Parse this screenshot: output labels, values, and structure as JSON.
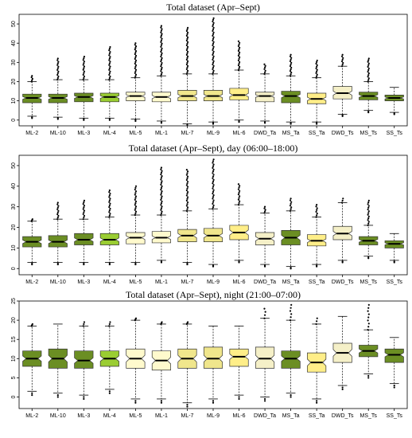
{
  "chart_data": [
    {
      "type": "boxplot",
      "title": "Total dataset (Apr–Sept)",
      "xlabel": "",
      "ylabel": "",
      "ylim": [
        -3,
        55
      ],
      "yticks": [
        0,
        10,
        20,
        30,
        40,
        50
      ],
      "categories": [
        "ML-2",
        "ML-10",
        "ML-3",
        "ML-4",
        "ML-5",
        "ML-1",
        "ML-7",
        "ML-9",
        "ML-6",
        "DWD_Ta",
        "MS_Ta",
        "SS_Ta",
        "DWD_Ts",
        "MS_Ts",
        "SS_Ts"
      ],
      "fill_colors": [
        "#6b8e23",
        "#6b8e23",
        "#6b8e23",
        "#9acd32",
        "#fffacd",
        "#fffacd",
        "#f0e68c",
        "#f0e68c",
        "#ffee88",
        "#f5f0c8",
        "#6b8e23",
        "#ffee88",
        "#f5f0c8",
        "#6b8e23",
        "#6b8e23"
      ],
      "series": [
        {
          "category": "ML-2",
          "q1": 9,
          "median": 11.5,
          "q3": 13.5,
          "whisker_low": 2,
          "whisker_high": 20,
          "outlier_max": 23
        },
        {
          "category": "ML-10",
          "q1": 9,
          "median": 11.5,
          "q3": 13.5,
          "whisker_low": 1.5,
          "whisker_high": 21,
          "outlier_max": 32
        },
        {
          "category": "ML-3",
          "q1": 9.5,
          "median": 12,
          "q3": 14,
          "whisker_low": 1,
          "whisker_high": 21,
          "outlier_max": 33
        },
        {
          "category": "ML-4",
          "q1": 9.5,
          "median": 12,
          "q3": 14,
          "whisker_low": 1,
          "whisker_high": 21,
          "outlier_max": 38
        },
        {
          "category": "ML-5",
          "q1": 10,
          "median": 12.5,
          "q3": 14.5,
          "whisker_low": 0.5,
          "whisker_high": 22,
          "outlier_max": 40
        },
        {
          "category": "ML-1",
          "q1": 9.5,
          "median": 12,
          "q3": 14.5,
          "whisker_low": -0.5,
          "whisker_high": 23,
          "outlier_max": 49
        },
        {
          "category": "ML-7",
          "q1": 10,
          "median": 12.5,
          "q3": 15.5,
          "whisker_low": -2,
          "whisker_high": 24,
          "outlier_max": 48
        },
        {
          "category": "ML-9",
          "q1": 10,
          "median": 12.5,
          "q3": 15.5,
          "whisker_low": -1,
          "whisker_high": 24,
          "outlier_max": 53
        },
        {
          "category": "ML-6",
          "q1": 10.5,
          "median": 13,
          "q3": 16.5,
          "whisker_low": 0,
          "whisker_high": 26,
          "outlier_max": 41
        },
        {
          "category": "DWD_Ta",
          "q1": 9.5,
          "median": 12.5,
          "q3": 14.5,
          "whisker_low": -0.5,
          "whisker_high": 24,
          "outlier_max": 29
        },
        {
          "category": "MS_Ta",
          "q1": 9,
          "median": 12.5,
          "q3": 15,
          "whisker_low": -1,
          "whisker_high": 23,
          "outlier_max": 34
        },
        {
          "category": "SS_Ta",
          "q1": 8.5,
          "median": 11,
          "q3": 14,
          "whisker_low": -1,
          "whisker_high": 22,
          "outlier_max": 31
        },
        {
          "category": "DWD_Ts",
          "q1": 11,
          "median": 14,
          "q3": 17.5,
          "whisker_low": 3,
          "whisker_high": 28,
          "outlier_max": 34
        },
        {
          "category": "MS_Ts",
          "q1": 10.5,
          "median": 12.5,
          "q3": 14.5,
          "whisker_low": 5,
          "whisker_high": 20,
          "outlier_max": 32
        },
        {
          "category": "SS_Ts",
          "q1": 10,
          "median": 11.5,
          "q3": 13,
          "whisker_low": 4,
          "whisker_high": 17,
          "outlier_max": 17
        }
      ]
    },
    {
      "type": "boxplot",
      "title": "Total dataset (Apr–Sept), day (06:00–18:00)",
      "xlabel": "",
      "ylabel": "",
      "ylim": [
        -3,
        55
      ],
      "yticks": [
        0,
        10,
        20,
        30,
        40,
        50
      ],
      "categories": [
        "ML-2",
        "ML-10",
        "ML-3",
        "ML-4",
        "ML-5",
        "ML-1",
        "ML-7",
        "ML-9",
        "ML-6",
        "DWD_Ta",
        "MS_Ta",
        "SS_Ta",
        "DWD_Ts",
        "MS_Ts",
        "SS_Ts"
      ],
      "fill_colors": [
        "#6b8e23",
        "#6b8e23",
        "#6b8e23",
        "#9acd32",
        "#fffacd",
        "#fffacd",
        "#f0e68c",
        "#f0e68c",
        "#ffee88",
        "#f5f0c8",
        "#6b8e23",
        "#ffee88",
        "#f5f0c8",
        "#6b8e23",
        "#6b8e23"
      ],
      "series": [
        {
          "category": "ML-2",
          "q1": 10.5,
          "median": 13,
          "q3": 15.5,
          "whisker_low": 3,
          "whisker_high": 23,
          "outlier_max": 24
        },
        {
          "category": "ML-10",
          "q1": 10.5,
          "median": 13,
          "q3": 16,
          "whisker_low": 3,
          "whisker_high": 24,
          "outlier_max": 32
        },
        {
          "category": "ML-3",
          "q1": 11.5,
          "median": 14,
          "q3": 17,
          "whisker_low": 3,
          "whisker_high": 24,
          "outlier_max": 33
        },
        {
          "category": "ML-4",
          "q1": 11.5,
          "median": 14,
          "q3": 17,
          "whisker_low": 3,
          "whisker_high": 25,
          "outlier_max": 38
        },
        {
          "category": "ML-5",
          "q1": 12,
          "median": 15,
          "q3": 17.5,
          "whisker_low": 3,
          "whisker_high": 26,
          "outlier_max": 40
        },
        {
          "category": "ML-1",
          "q1": 12.5,
          "median": 15,
          "q3": 18,
          "whisker_low": 4,
          "whisker_high": 26,
          "outlier_max": 49
        },
        {
          "category": "ML-7",
          "q1": 13,
          "median": 16,
          "q3": 19,
          "whisker_low": 3,
          "whisker_high": 28,
          "outlier_max": 48
        },
        {
          "category": "ML-9",
          "q1": 13,
          "median": 16,
          "q3": 19.5,
          "whisker_low": 2,
          "whisker_high": 29,
          "outlier_max": 53
        },
        {
          "category": "ML-6",
          "q1": 14,
          "median": 17.5,
          "q3": 21,
          "whisker_low": 4,
          "whisker_high": 31,
          "outlier_max": 41
        },
        {
          "category": "DWD_Ta",
          "q1": 11.5,
          "median": 14.5,
          "q3": 17.5,
          "whisker_low": 2,
          "whisker_high": 27,
          "outlier_max": 30
        },
        {
          "category": "MS_Ta",
          "q1": 11.5,
          "median": 15,
          "q3": 18.5,
          "whisker_low": 1,
          "whisker_high": 28,
          "outlier_max": 34
        },
        {
          "category": "SS_Ta",
          "q1": 11,
          "median": 13.5,
          "q3": 16.5,
          "whisker_low": 2,
          "whisker_high": 25,
          "outlier_max": 31
        },
        {
          "category": "DWD_Ts",
          "q1": 14,
          "median": 17,
          "q3": 20.5,
          "whisker_low": 4,
          "whisker_high": 32,
          "outlier_max": 34
        },
        {
          "category": "MS_Ts",
          "q1": 11.5,
          "median": 13.5,
          "q3": 15.5,
          "whisker_low": 6,
          "whisker_high": 21,
          "outlier_max": 33
        },
        {
          "category": "SS_Ts",
          "q1": 10,
          "median": 12,
          "q3": 13.5,
          "whisker_low": 4,
          "whisker_high": 17,
          "outlier_max": 17
        }
      ]
    },
    {
      "type": "boxplot",
      "title": "Total dataset (Apr–Sept), night (21:00–07:00)",
      "xlabel": "",
      "ylabel": "",
      "ylim": [
        -3,
        25
      ],
      "yticks": [
        0,
        5,
        10,
        15,
        20,
        25
      ],
      "categories": [
        "ML-2",
        "ML-10",
        "ML-3",
        "ML-4",
        "ML-5",
        "ML-1",
        "ML-7",
        "ML-9",
        "ML-6",
        "DWD_Ta",
        "MS_Ta",
        "SS_Ta",
        "DWD_Ts",
        "MS_Ts",
        "SS_Ts"
      ],
      "fill_colors": [
        "#6b8e23",
        "#6b8e23",
        "#6b8e23",
        "#9acd32",
        "#fffacd",
        "#fffacd",
        "#f0e68c",
        "#f0e68c",
        "#ffee88",
        "#f5f0c8",
        "#6b8e23",
        "#ffee88",
        "#f5f0c8",
        "#6b8e23",
        "#6b8e23"
      ],
      "series": [
        {
          "category": "ML-2",
          "q1": 8,
          "median": 10,
          "q3": 12,
          "whisker_low": 1.5,
          "whisker_high": 18.5,
          "outlier_max": 19
        },
        {
          "category": "ML-10",
          "q1": 7.5,
          "median": 10,
          "q3": 12.5,
          "whisker_low": 1,
          "whisker_high": 19,
          "outlier_max": 19
        },
        {
          "category": "ML-3",
          "q1": 7.5,
          "median": 9.5,
          "q3": 12,
          "whisker_low": 0.5,
          "whisker_high": 18.5,
          "outlier_max": 19.5
        },
        {
          "category": "ML-4",
          "q1": 8,
          "median": 10,
          "q3": 12,
          "whisker_low": 2,
          "whisker_high": 18.5,
          "outlier_max": 19.5
        },
        {
          "category": "ML-5",
          "q1": 7.5,
          "median": 10,
          "q3": 12.5,
          "whisker_low": -0.5,
          "whisker_high": 20,
          "outlier_max": 20.5
        },
        {
          "category": "ML-1",
          "q1": 7,
          "median": 9.5,
          "q3": 12,
          "whisker_low": -0.5,
          "whisker_high": 19,
          "outlier_max": 19.5
        },
        {
          "category": "ML-7",
          "q1": 7.5,
          "median": 10,
          "q3": 12.5,
          "whisker_low": -1.5,
          "whisker_high": 19,
          "outlier_max": 19.5
        },
        {
          "category": "ML-9",
          "q1": 7.5,
          "median": 10,
          "q3": 13,
          "whisker_low": -0.5,
          "whisker_high": 18.5,
          "outlier_max": 18.5
        },
        {
          "category": "ML-6",
          "q1": 8,
          "median": 10.5,
          "q3": 12.5,
          "whisker_low": 0.5,
          "whisker_high": 18.5,
          "outlier_max": 18.5
        },
        {
          "category": "DWD_Ta",
          "q1": 7.5,
          "median": 10,
          "q3": 13,
          "whisker_low": 0,
          "whisker_high": 20.5,
          "outlier_max": 23
        },
        {
          "category": "MS_Ta",
          "q1": 7.5,
          "median": 10,
          "q3": 12,
          "whisker_low": 1,
          "whisker_high": 20,
          "outlier_max": 24
        },
        {
          "category": "SS_Ta",
          "q1": 6.5,
          "median": 9,
          "q3": 11.5,
          "whisker_low": -0.5,
          "whisker_high": 19,
          "outlier_max": 20.5
        },
        {
          "category": "DWD_Ts",
          "q1": 9,
          "median": 11.5,
          "q3": 14,
          "whisker_low": 3,
          "whisker_high": 21,
          "outlier_max": 21
        },
        {
          "category": "MS_Ts",
          "q1": 10.5,
          "median": 12,
          "q3": 13.5,
          "whisker_low": 6,
          "whisker_high": 17.5,
          "outlier_max": 24
        },
        {
          "category": "SS_Ts",
          "q1": 9,
          "median": 11,
          "q3": 12.5,
          "whisker_low": 3.5,
          "whisker_high": 15.5,
          "outlier_max": 15.5
        }
      ]
    }
  ]
}
